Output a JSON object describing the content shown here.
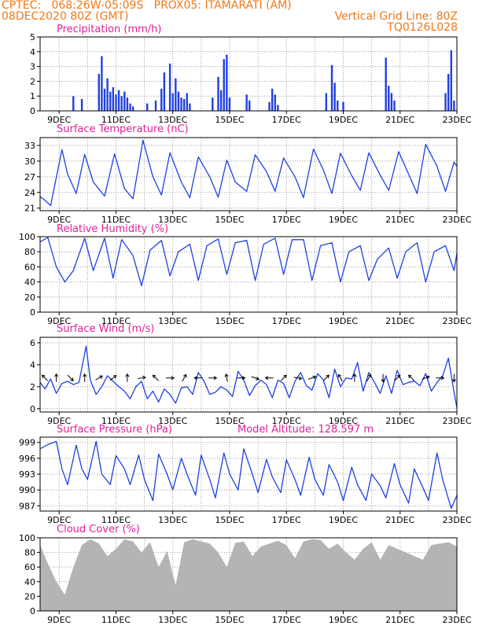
{
  "header": {
    "line1_left": "CPTEC:   068:26W-05:09S   PROX05: ITAMARATI (AM)",
    "line2_left": "08DEC2020 80Z (GMT)",
    "line2_right": "Vertical Grid Line: 80Z",
    "line3_right": "TQ0126L028"
  },
  "colors": {
    "header": "#f07818",
    "title": "#e0209a",
    "line": "#2040e0",
    "cloud": "#b4b4b4",
    "arrow": "#000000"
  },
  "x_tick_labels": [
    "9DEC",
    "11DEC",
    "13DEC",
    "15DEC",
    "17DEC",
    "19DEC",
    "21DEC",
    "23DEC"
  ],
  "chart_data": [
    {
      "type": "bar",
      "title": "Precipitation (mm/h)",
      "x_range": [
        8.33,
        23.0
      ],
      "ylim": [
        0,
        5
      ],
      "y_ticks": [
        "0",
        "1",
        "2",
        "3",
        "4",
        "5"
      ],
      "hours": [
        9.5,
        9.8,
        10.4,
        10.5,
        10.6,
        10.7,
        10.8,
        10.9,
        11.0,
        11.1,
        11.2,
        11.3,
        11.4,
        11.5,
        11.6,
        12.1,
        12.4,
        12.6,
        12.7,
        12.9,
        13.0,
        13.1,
        13.2,
        13.3,
        13.4,
        13.5,
        13.6,
        14.4,
        14.6,
        14.7,
        14.8,
        14.9,
        15.0,
        15.6,
        15.7,
        16.4,
        16.5,
        16.6,
        16.7,
        18.4,
        18.6,
        18.7,
        18.8,
        19.0,
        20.5,
        20.6,
        20.7,
        20.8,
        22.6,
        22.7,
        22.8,
        22.9
      ],
      "values": [
        1.0,
        0.8,
        2.5,
        3.7,
        1.5,
        2.2,
        1.3,
        1.6,
        1.1,
        1.4,
        1.0,
        1.3,
        0.9,
        0.5,
        0.3,
        0.5,
        0.7,
        1.5,
        2.6,
        3.2,
        1.2,
        2.2,
        1.3,
        0.9,
        0.8,
        1.2,
        0.5,
        0.9,
        2.3,
        1.4,
        3.5,
        3.8,
        0.9,
        1.1,
        0.7,
        0.6,
        1.5,
        1.1,
        0.4,
        1.2,
        3.1,
        1.9,
        0.7,
        0.6,
        3.6,
        1.7,
        1.2,
        0.7,
        1.2,
        2.5,
        4.1,
        0.7
      ]
    },
    {
      "type": "line",
      "title": "Surface Temperature (nC)",
      "x_range": [
        8.33,
        23.0
      ],
      "ylim": [
        20.5,
        34.5
      ],
      "y_ticks": [
        "21",
        "24",
        "27",
        "30",
        "33"
      ],
      "x": [
        8.33,
        8.5,
        8.7,
        9.1,
        9.3,
        9.6,
        9.9,
        10.2,
        10.6,
        10.95,
        11.3,
        11.6,
        11.95,
        12.3,
        12.6,
        12.9,
        13.3,
        13.6,
        13.9,
        14.3,
        14.6,
        14.9,
        15.2,
        15.6,
        15.9,
        16.3,
        16.6,
        16.9,
        17.3,
        17.6,
        17.95,
        18.3,
        18.6,
        18.9,
        19.3,
        19.6,
        19.9,
        20.3,
        20.6,
        20.95,
        21.3,
        21.6,
        21.9,
        22.3,
        22.6,
        22.9,
        23.0
      ],
      "y": [
        23.2,
        22.5,
        21.5,
        32.2,
        27.5,
        23.8,
        31.3,
        26.0,
        23.3,
        31.4,
        24.7,
        22.8,
        34.0,
        27.0,
        23.5,
        31.6,
        26.0,
        23.0,
        30.8,
        27.0,
        23.1,
        30.2,
        26.0,
        24.2,
        31.2,
        28.0,
        24.2,
        30.6,
        27.0,
        23.0,
        32.3,
        28.3,
        23.8,
        31.5,
        27.2,
        24.4,
        31.6,
        27.3,
        24.4,
        31.8,
        27.5,
        23.8,
        33.2,
        29.0,
        24.2,
        29.8,
        29.0
      ]
    },
    {
      "type": "line",
      "title": "Relative Humidity (%)",
      "x_range": [
        8.33,
        23.0
      ],
      "ylim": [
        0,
        100
      ],
      "y_ticks": [
        "0",
        "20",
        "40",
        "60",
        "80",
        "100"
      ],
      "x": [
        8.33,
        8.6,
        8.9,
        9.2,
        9.5,
        9.9,
        10.2,
        10.6,
        10.9,
        11.2,
        11.6,
        11.9,
        12.2,
        12.6,
        12.9,
        13.2,
        13.6,
        13.9,
        14.2,
        14.6,
        14.9,
        15.2,
        15.6,
        15.9,
        16.2,
        16.6,
        16.9,
        17.2,
        17.6,
        17.9,
        18.2,
        18.6,
        18.9,
        19.2,
        19.6,
        19.9,
        20.2,
        20.6,
        20.9,
        21.2,
        21.6,
        21.9,
        22.2,
        22.6,
        22.9,
        23.0
      ],
      "y": [
        93,
        99,
        60,
        40,
        55,
        98,
        55,
        98,
        45,
        96,
        75,
        35,
        82,
        95,
        48,
        80,
        90,
        42,
        88,
        97,
        50,
        92,
        95,
        42,
        90,
        98,
        50,
        96,
        96,
        42,
        88,
        92,
        40,
        80,
        88,
        42,
        70,
        85,
        45,
        80,
        92,
        40,
        80,
        88,
        55,
        78
      ]
    },
    {
      "type": "line",
      "title": "Surface Wind (m/s)",
      "x_range": [
        8.33,
        23.0
      ],
      "ylim": [
        -0.3,
        6.5
      ],
      "y_ticks": [
        "0",
        "2",
        "4",
        "6"
      ],
      "x": [
        8.33,
        8.5,
        8.7,
        8.9,
        9.1,
        9.3,
        9.5,
        9.7,
        9.95,
        10.1,
        10.3,
        10.5,
        10.7,
        10.9,
        11.1,
        11.3,
        11.5,
        11.7,
        11.9,
        12.1,
        12.3,
        12.5,
        12.7,
        12.9,
        13.1,
        13.3,
        13.5,
        13.7,
        13.9,
        14.1,
        14.3,
        14.5,
        14.7,
        14.9,
        15.1,
        15.3,
        15.5,
        15.7,
        15.9,
        16.1,
        16.3,
        16.5,
        16.7,
        16.9,
        17.1,
        17.3,
        17.5,
        17.7,
        17.9,
        18.1,
        18.3,
        18.5,
        18.7,
        18.9,
        19.1,
        19.3,
        19.5,
        19.7,
        19.9,
        20.1,
        20.3,
        20.5,
        20.7,
        20.9,
        21.1,
        21.3,
        21.5,
        21.7,
        21.9,
        22.1,
        22.3,
        22.5,
        22.7,
        22.9,
        23.0
      ],
      "y": [
        2.4,
        1.8,
        2.7,
        1.4,
        2.3,
        2.5,
        2.2,
        2.4,
        5.7,
        2.6,
        1.3,
        2.0,
        3.0,
        2.5,
        2.0,
        1.6,
        0.9,
        2.0,
        2.5,
        0.9,
        1.6,
        0.6,
        1.8,
        1.3,
        0.5,
        1.9,
        2.0,
        1.3,
        3.3,
        2.5,
        1.3,
        1.5,
        2.0,
        1.7,
        1.1,
        3.4,
        2.6,
        1.2,
        2.1,
        2.6,
        2.2,
        1.0,
        2.6,
        2.3,
        1.0,
        2.5,
        3.3,
        2.1,
        1.7,
        3.2,
        2.6,
        1.0,
        3.6,
        2.0,
        2.8,
        2.7,
        4.2,
        1.6,
        3.3,
        2.4,
        1.4,
        3.0,
        1.4,
        3.5,
        2.2,
        2.4,
        2.5,
        2.1,
        3.2,
        1.6,
        2.4,
        3.0,
        4.6,
        1.5,
        0.1
      ],
      "arrow_x": [
        8.5,
        8.9,
        9.4,
        9.9,
        10.4,
        10.9,
        11.4,
        11.9,
        12.4,
        12.9,
        13.4,
        13.9,
        14.4,
        14.9,
        15.4,
        15.9,
        16.4,
        16.9,
        17.4,
        17.9,
        18.4,
        18.9,
        19.4,
        19.9,
        20.4,
        20.9,
        21.4,
        21.9,
        22.4,
        22.9
      ],
      "arrow_dir_deg": [
        135,
        90,
        315,
        90,
        30,
        40,
        90,
        10,
        135,
        0,
        60,
        180,
        0,
        100,
        0,
        340,
        180,
        45,
        350,
        20,
        45,
        120,
        90,
        60,
        270,
        45,
        135,
        20,
        0,
        270
      ]
    },
    {
      "type": "line",
      "title": "Surface Pressure (hPa)",
      "annotation": "Model Altitude: 128.597 m",
      "x_range": [
        8.33,
        23.0
      ],
      "ylim": [
        986,
        1000
      ],
      "y_ticks": [
        "987",
        "990",
        "993",
        "996",
        "999"
      ],
      "x": [
        8.33,
        8.6,
        8.9,
        9.1,
        9.3,
        9.6,
        9.8,
        10.0,
        10.3,
        10.5,
        10.8,
        11.0,
        11.3,
        11.5,
        11.8,
        12.0,
        12.3,
        12.5,
        12.8,
        13.0,
        13.3,
        13.5,
        13.8,
        14.0,
        14.3,
        14.5,
        14.8,
        15.0,
        15.3,
        15.5,
        15.8,
        16.0,
        16.3,
        16.5,
        16.8,
        17.0,
        17.3,
        17.5,
        17.8,
        18.0,
        18.3,
        18.5,
        18.8,
        19.0,
        19.3,
        19.5,
        19.8,
        20.0,
        20.3,
        20.5,
        20.8,
        21.0,
        21.3,
        21.5,
        21.8,
        22.0,
        22.3,
        22.5,
        22.8,
        23.0
      ],
      "y": [
        997.8,
        998.6,
        999.2,
        994.0,
        991.0,
        998.5,
        994.0,
        992.0,
        999.2,
        993.0,
        991.0,
        996.5,
        994.0,
        991.0,
        996.6,
        992.0,
        988.0,
        996.8,
        993.0,
        990.0,
        996.0,
        993.0,
        989.0,
        996.6,
        992.0,
        988.5,
        997.0,
        993.0,
        990.0,
        997.8,
        993.0,
        989.5,
        995.8,
        992.5,
        989.5,
        995.7,
        992.0,
        989.0,
        996.2,
        992.0,
        989.0,
        994.8,
        991.5,
        988.0,
        994.3,
        991.0,
        988.0,
        993.0,
        990.8,
        988.5,
        995.0,
        991.0,
        987.5,
        994.0,
        990.5,
        988.0,
        997.0,
        992.0,
        986.5,
        989.0
      ]
    },
    {
      "type": "area",
      "title": "Cloud Cover (%)",
      "x_range": [
        8.33,
        23.0
      ],
      "ylim": [
        0,
        100
      ],
      "y_ticks": [
        "0",
        "20",
        "40",
        "60",
        "80",
        "100"
      ],
      "x": [
        8.33,
        8.6,
        8.9,
        9.2,
        9.5,
        9.8,
        10.1,
        10.4,
        10.7,
        11.0,
        11.3,
        11.6,
        11.9,
        12.2,
        12.5,
        12.8,
        13.1,
        13.4,
        13.7,
        14.0,
        14.3,
        14.6,
        14.9,
        15.2,
        15.5,
        15.8,
        16.1,
        16.4,
        16.7,
        17.0,
        17.3,
        17.6,
        17.9,
        18.2,
        18.5,
        18.8,
        19.1,
        19.4,
        19.7,
        20.0,
        20.3,
        20.6,
        20.9,
        21.2,
        21.5,
        21.8,
        22.1,
        22.4,
        22.7,
        23.0
      ],
      "y": [
        90,
        65,
        40,
        22,
        60,
        90,
        98,
        92,
        75,
        85,
        98,
        95,
        80,
        94,
        60,
        82,
        35,
        94,
        98,
        95,
        92,
        80,
        60,
        93,
        95,
        75,
        88,
        92,
        96,
        90,
        72,
        95,
        98,
        97,
        85,
        92,
        80,
        70,
        85,
        94,
        70,
        90,
        85,
        80,
        75,
        70,
        90,
        92,
        94,
        88
      ]
    }
  ]
}
